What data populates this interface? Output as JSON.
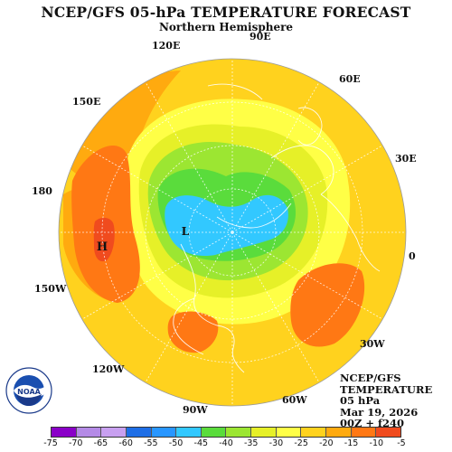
{
  "title": "NCEP/GFS 05-hPa TEMPERATURE FORECAST",
  "subtitle": "Northern Hemisphere",
  "longitude_labels": [
    "90E",
    "120E",
    "60E",
    "150E",
    "30E",
    "180",
    "0",
    "150W",
    "30W",
    "120W",
    "60W",
    "90W"
  ],
  "extremes": {
    "high_label": "H",
    "low_label": "L"
  },
  "info": {
    "line1": "NCEP/GFS",
    "line2": "TEMPERATURE",
    "line3": "05 hPa",
    "line4": "Mar 19, 2026",
    "line5": "00Z + f240"
  },
  "logo": {
    "center_text": "NOAA",
    "icon": "noaa-logo"
  },
  "colorbar": {
    "labels": [
      "-75",
      "-70",
      "-65",
      "-60",
      "-55",
      "-50",
      "-45",
      "-40",
      "-35",
      "-30",
      "-25",
      "-20",
      "-15",
      "-10",
      "-5"
    ],
    "colors": [
      "#8a00c8",
      "#b48ae6",
      "#c8a0f0",
      "#1e6ee6",
      "#2896ff",
      "#32c8ff",
      "#5adc3c",
      "#9ce632",
      "#e6f028",
      "#ffff46",
      "#ffd21e",
      "#ffaa0f",
      "#ff7814",
      "#f04b1e"
    ]
  }
}
